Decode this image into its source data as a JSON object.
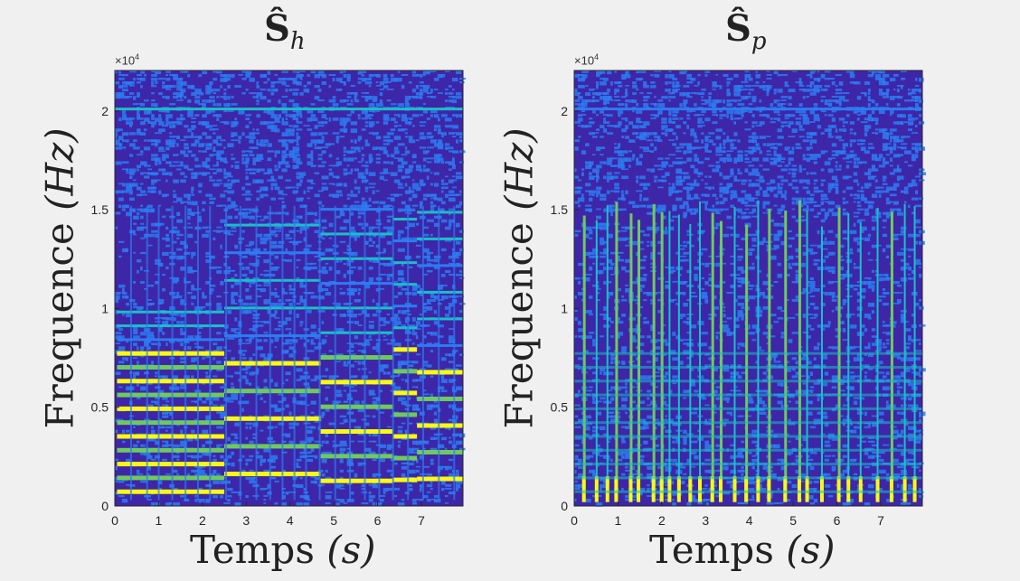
{
  "chart_data": [
    {
      "type": "heatmap",
      "title_main": "Ŝ",
      "title_sub": "h",
      "xlabel_word": "Temps",
      "xlabel_var": "(s)",
      "ylabel_word": "Frequence",
      "ylabel_var": "(Hz)",
      "y_exponent": "×10",
      "y_exponent_power": "4",
      "xlim": [
        0,
        7.95
      ],
      "ylim": [
        0,
        22050
      ],
      "xticks": [
        0,
        1,
        2,
        3,
        4,
        5,
        6,
        7
      ],
      "xtick_labels": [
        "0",
        "1",
        "2",
        "3",
        "4",
        "5",
        "6",
        "7"
      ],
      "yticks": [
        0,
        5000,
        10000,
        15000,
        20000
      ],
      "ytick_labels": [
        "0",
        "0.5",
        "1",
        "1.5",
        "2"
      ],
      "colormap": [
        "#3e26a8",
        "#2c7cf1",
        "#1ac0c5",
        "#6ecb5b",
        "#f9fb0e"
      ],
      "line_hz": 20100,
      "component": "harmonic"
    },
    {
      "type": "heatmap",
      "title_main": "Ŝ",
      "title_sub": "p",
      "xlabel_word": "Temps",
      "xlabel_var": "(s)",
      "ylabel_word": "Frequence",
      "ylabel_var": "(Hz)",
      "y_exponent": "×10",
      "y_exponent_power": "4",
      "xlim": [
        0,
        7.95
      ],
      "ylim": [
        0,
        22050
      ],
      "xticks": [
        0,
        1,
        2,
        3,
        4,
        5,
        6,
        7
      ],
      "xtick_labels": [
        "0",
        "1",
        "2",
        "3",
        "4",
        "5",
        "6",
        "7"
      ],
      "yticks": [
        0,
        5000,
        10000,
        15000,
        20000
      ],
      "ytick_labels": [
        "0",
        "0.5",
        "1",
        "1.5",
        "2"
      ],
      "colormap": [
        "#3e26a8",
        "#2c7cf1",
        "#1ac0c5",
        "#6ecb5b",
        "#f9fb0e"
      ],
      "line_hz": 20100,
      "component": "percussive"
    }
  ]
}
